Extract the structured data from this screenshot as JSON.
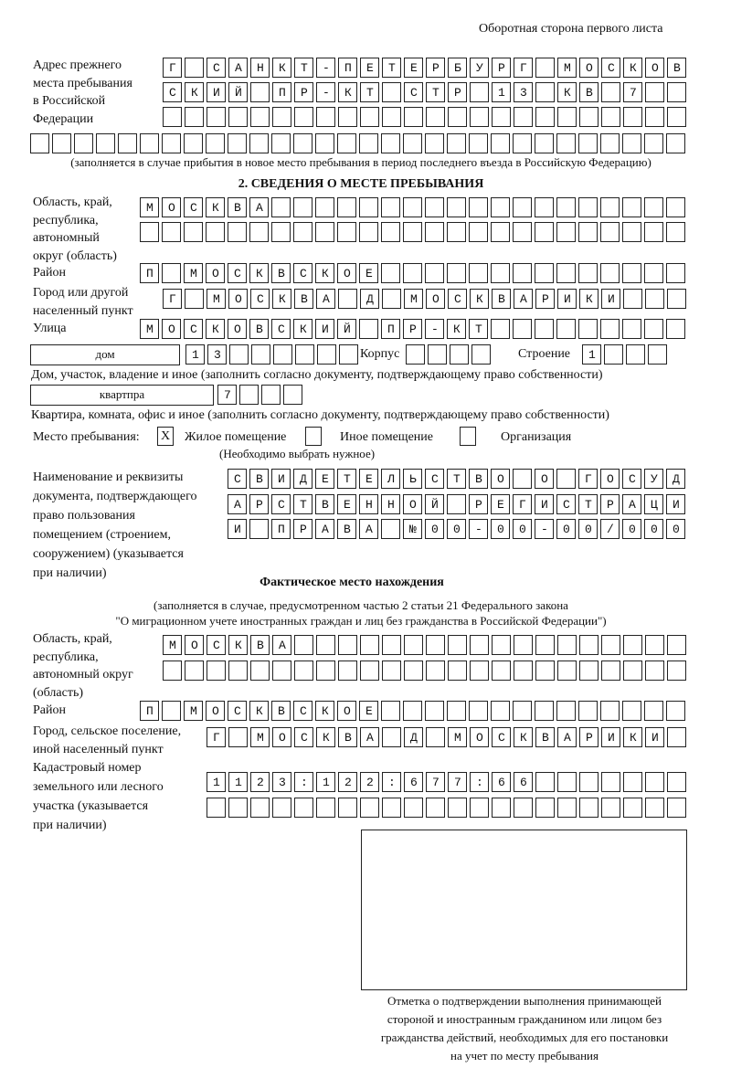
{
  "header": {
    "page_side": "Оборотная сторона первого листа"
  },
  "previous_address": {
    "label": [
      "Адрес прежнего",
      "места пребывания",
      "в Российской",
      "Федерации"
    ],
    "rows": [
      "Г САНКТ-ПЕТЕРБУРГ МОСКОВ",
      "СКИЙ ПР-КТ СТР 13 КВ 7  ",
      "                        ",
      "                              "
    ],
    "note": "(заполняется в случае прибытия в новое место пребывания в период последнего въезда в Российскую Федерацию)"
  },
  "section2": {
    "title": "2. СВЕДЕНИЯ О МЕСТЕ ПРЕБЫВАНИЯ",
    "region_label": [
      "Область, край,",
      "республика,",
      "автономный",
      "округ (область)"
    ],
    "region_rows": [
      "МОСКВА                   ",
      "                         "
    ],
    "district_label": "Район",
    "district_row": "П МОСКВСКОЕ              ",
    "city_label": [
      "Город или другой",
      "населенный пункт"
    ],
    "city_row": "Г МОСКВА Д МОСКВАРИКИ   ",
    "street_label": "Улица",
    "street_row": "МОСКОВСКИЙ ПР-КТ         ",
    "house_type": "дом",
    "house_row": "13      ",
    "korpus_label": "Корпус",
    "korpus_row": "    ",
    "building_label": "Строение",
    "building_row": "1   ",
    "house_note": "Дом, участок, владение и иное (заполнить согласно документу, подтверждающему право собственности)",
    "apartment_type": "квартпра",
    "apartment_row": "7   ",
    "apartment_note": "Квартира, комната, офис и иное (заполнить согласно документу, подтверждающему право собственности)",
    "stay_place_label": "Место пребывания:",
    "options": [
      {
        "label": "Жилое помещение",
        "checked": "X"
      },
      {
        "label": "Иное помещение",
        "checked": ""
      },
      {
        "label": "Организация",
        "checked": ""
      }
    ],
    "choose_note": "(Необходимо выбрать нужное)",
    "document_label": [
      "Наименование и реквизиты",
      "документа, подтверждающего",
      "право пользования",
      "помещением (строением,",
      "сооружением) (указывается",
      "при наличии)"
    ],
    "document_rows": [
      "СВИДЕТЕЛЬСТВО О ГОСУД",
      "АРСТВЕННОЙ РЕГИСТРАЦИ",
      "И ПРАВА №00-00-00/000"
    ]
  },
  "actual_location": {
    "title": "Фактическое место нахождения",
    "note": [
      "(заполняется в случае, предусмотренном частью 2 статьи 21 Федерального закона",
      "\"О миграционном учете иностранных граждан и лиц без гражданства в Российской Федерации\")"
    ],
    "region_label": [
      "Область, край,",
      "республика,",
      "автономный округ",
      "(область)"
    ],
    "region_rows": [
      "МОСКВА                  ",
      "                        "
    ],
    "district_label": "Район",
    "district_row": "П МОСКВСКОЕ              ",
    "city_label": [
      "Город, сельское поселение,",
      "иной населенный пункт"
    ],
    "city_row": "Г МОСКВА Д МОСКВАРИКИ ",
    "cadastral_label": [
      "Кадастровый номер",
      "земельного или лесного",
      "участка (указывается",
      "при наличии)"
    ],
    "cadastral_rows": [
      "1123:122:677:66       ",
      "                      "
    ]
  },
  "confirmation": {
    "caption": [
      "Отметка о подтверждении выполнения принимающей",
      "стороной и иностранным гражданином или лицом без",
      "гражданства действий, необходимых для его постановки",
      "на учет по месту пребывания"
    ]
  }
}
